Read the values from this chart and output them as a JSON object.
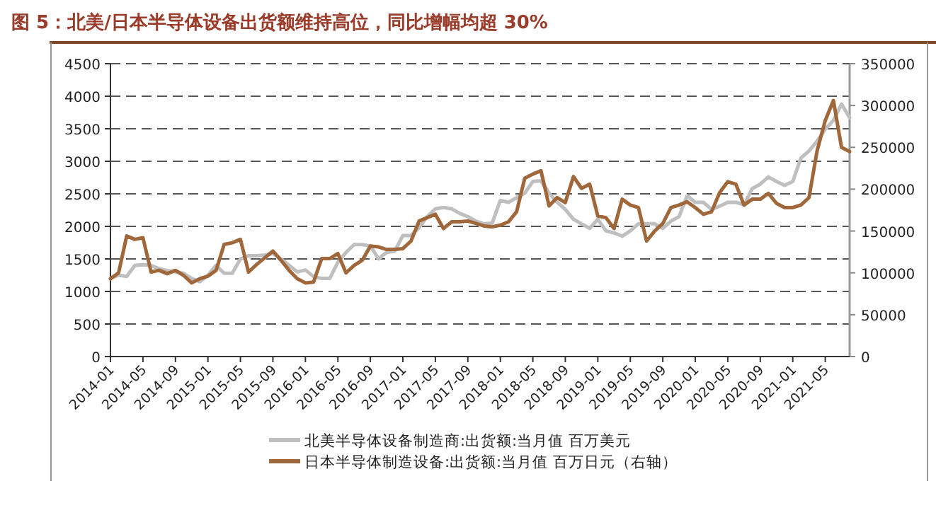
{
  "chart_data": {
    "type": "line",
    "title": "图 5：北美/日本半导体设备出货额维持高位，同比增幅均超 30%",
    "categories": [
      "2014-01",
      null,
      null,
      null,
      "2014-05",
      null,
      null,
      null,
      "2014-09",
      null,
      null,
      null,
      "2015-01",
      null,
      null,
      null,
      "2015-05",
      null,
      null,
      null,
      "2015-09",
      null,
      null,
      null,
      "2016-01",
      null,
      null,
      null,
      "2016-05",
      null,
      null,
      null,
      "2016-09",
      null,
      null,
      null,
      "2017-01",
      null,
      null,
      null,
      "2017-05",
      null,
      null,
      null,
      "2017-09",
      null,
      null,
      null,
      "2018-01",
      null,
      null,
      null,
      "2018-05",
      null,
      null,
      null,
      "2018-09",
      null,
      null,
      null,
      "2019-01",
      null,
      null,
      null,
      "2019-05",
      null,
      null,
      null,
      "2019-09",
      null,
      null,
      null,
      "2020-01",
      null,
      null,
      null,
      "2020-05",
      null,
      null,
      null,
      "2020-09",
      null,
      null,
      null,
      "2021-01",
      null,
      null,
      null,
      "2021-05",
      null,
      null,
      null
    ],
    "series": [
      {
        "name": "北美半导体设备制造商:出货额:当月值 百万美元",
        "color": "#bfbfbf",
        "values": [
          1200,
          1250,
          1230,
          1400,
          1410,
          1400,
          1350,
          1320,
          1300,
          1280,
          1200,
          1150,
          1250,
          1400,
          1280,
          1280,
          1500,
          1550,
          1550,
          1560,
          1580,
          1500,
          1400,
          1300,
          1330,
          1230,
          1200,
          1200,
          1450,
          1600,
          1720,
          1720,
          1700,
          1500,
          1600,
          1620,
          1860,
          1860,
          1980,
          2150,
          2270,
          2290,
          2270,
          2200,
          2150,
          2080,
          2040,
          2050,
          2400,
          2370,
          2440,
          2510,
          2690,
          2700,
          2510,
          2370,
          2260,
          2110,
          2040,
          1970,
          2110,
          1930,
          1900,
          1850,
          1930,
          2040,
          2040,
          2040,
          1970,
          2080,
          2150,
          2470,
          2370,
          2370,
          2260,
          2310,
          2370,
          2370,
          2330,
          2580,
          2650,
          2760,
          2690,
          2630,
          2690,
          3050,
          3160,
          3310,
          3490,
          3630,
          3880,
          3670
        ]
      },
      {
        "name": "日本半导体制造设备:出货额:当月值 百万日元（右轴）",
        "color": "#a0683a",
        "axis": "y2",
        "values": [
          93000,
          100000,
          144000,
          140000,
          142000,
          101000,
          103000,
          99000,
          103000,
          97000,
          88000,
          93000,
          96000,
          103000,
          134000,
          136000,
          140000,
          101000,
          110000,
          118000,
          126000,
          115000,
          103000,
          93000,
          88000,
          89000,
          117000,
          117000,
          123000,
          100000,
          109000,
          115000,
          132000,
          131000,
          128000,
          128000,
          129000,
          138000,
          162000,
          166000,
          170000,
          153000,
          161000,
          161000,
          162000,
          159000,
          156000,
          155000,
          157000,
          161000,
          173000,
          213000,
          218000,
          222000,
          180000,
          190000,
          184000,
          215000,
          201000,
          206000,
          168000,
          166000,
          153000,
          188000,
          181000,
          178000,
          138000,
          150000,
          159000,
          178000,
          181000,
          185000,
          178000,
          170000,
          173000,
          196000,
          209000,
          206000,
          181000,
          188000,
          188000,
          195000,
          183000,
          178000,
          178000,
          181000,
          190000,
          246000,
          282000,
          306000,
          250000,
          245000
        ]
      }
    ],
    "ylim": [
      0,
      4500
    ],
    "yticks": [
      0,
      500,
      1000,
      1500,
      2000,
      2500,
      3000,
      3500,
      4000,
      4500
    ],
    "y2lim": [
      0,
      350000
    ],
    "y2ticks": [
      0,
      50000,
      100000,
      150000,
      200000,
      250000,
      300000,
      350000
    ],
    "grid": "y",
    "legend": "bottom"
  }
}
